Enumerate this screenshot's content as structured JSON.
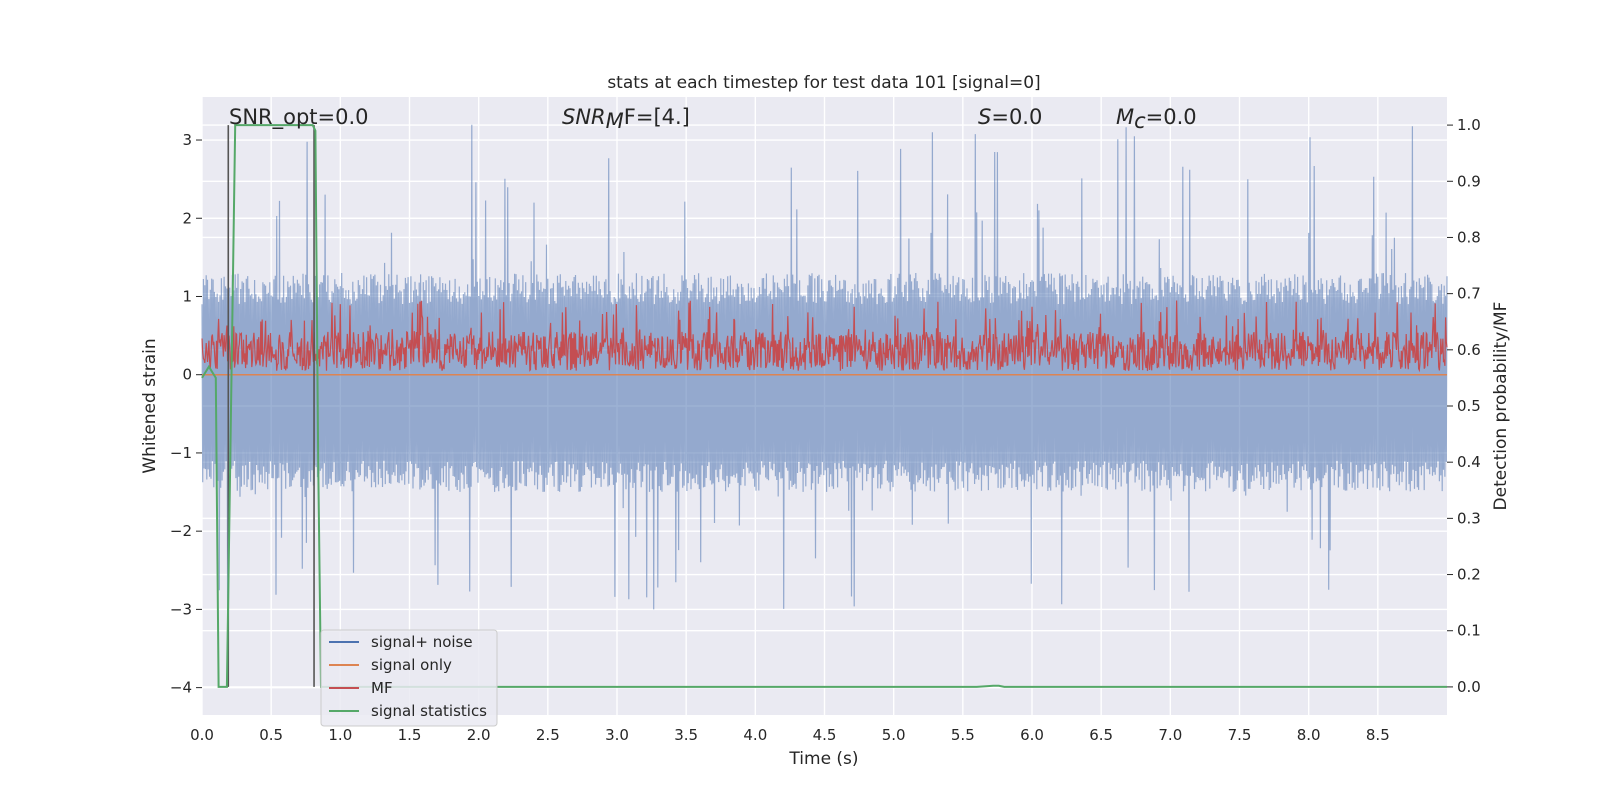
{
  "chart_data": {
    "type": "line",
    "title": "stats at each timestep for test data 101 [signal=0]",
    "xlabel": "Time (s)",
    "ylabel": "Whitened strain",
    "y2label": "Detection probability/MF",
    "xlim": [
      0.0,
      9.0
    ],
    "ylim": [
      -4.35,
      3.55
    ],
    "y2lim": [
      -0.05,
      1.05
    ],
    "x_ticks": [
      "0.0",
      "0.5",
      "1.0",
      "1.5",
      "2.0",
      "2.5",
      "3.0",
      "3.5",
      "4.0",
      "4.5",
      "5.0",
      "5.5",
      "6.0",
      "6.5",
      "7.0",
      "7.5",
      "8.0",
      "8.5"
    ],
    "y_ticks": [
      "3",
      "2",
      "1",
      "0",
      "−1",
      "−2",
      "−3",
      "−4"
    ],
    "y2_ticks": [
      "1.0",
      "0.9",
      "0.8",
      "0.7",
      "0.6",
      "0.5",
      "0.4",
      "0.3",
      "0.2",
      "0.1",
      "0.0"
    ],
    "grid": true,
    "legend_position": "lower-left",
    "annotations": {
      "snr_opt": "SNR_opt=0.0",
      "snr_mf_sym": "SNR",
      "snr_mf_sub": "M",
      "snr_mf_rest": "F=[4.]",
      "s_sym": "S",
      "s_rest": "=0.0",
      "mc_sym": "M",
      "mc_sub": "c",
      "mc_rest": "=0.0"
    },
    "vlines_x": [
      0.19,
      0.81
    ],
    "series": [
      {
        "name": "signal+ noise",
        "color": "#4c72b0",
        "axis": "left",
        "noise_band": [
          -1.3,
          1.1
        ],
        "spike_range": [
          -3.3,
          3.2
        ]
      },
      {
        "name": "signal only",
        "color": "#dd8452",
        "axis": "left",
        "values": "0 for all t"
      },
      {
        "name": "MF",
        "color": "#c44e52",
        "axis": "left",
        "band": [
          0.0,
          0.95
        ]
      },
      {
        "name": "signal statistics",
        "color": "#55a868",
        "axis": "right",
        "x": [
          0.0,
          0.05,
          0.1,
          0.12,
          0.18,
          0.24,
          0.26,
          0.8,
          0.82,
          0.84,
          0.86,
          1.0,
          5.6,
          5.72,
          5.76,
          5.8,
          9.0
        ],
        "y": [
          0.55,
          0.57,
          0.55,
          0.0,
          0.0,
          1.0,
          1.0,
          1.0,
          0.99,
          0.4,
          0.0,
          0.0,
          0.0,
          0.002,
          0.002,
          0.0,
          0.0
        ]
      }
    ]
  }
}
